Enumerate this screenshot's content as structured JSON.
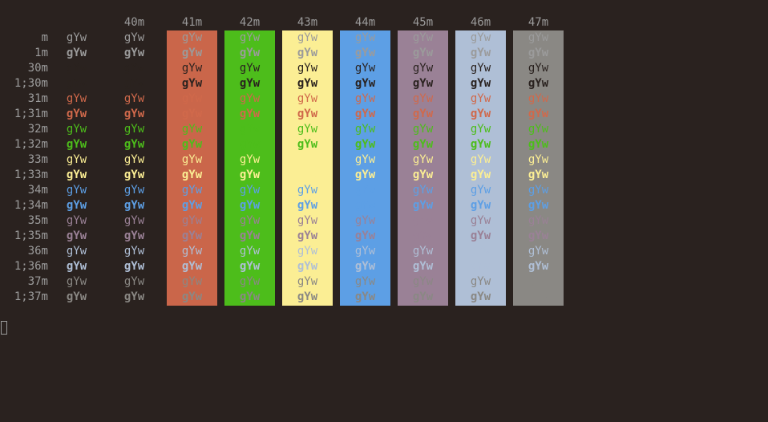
{
  "palette": {
    "fg_default": "#9b9b9b",
    "fg_30": "#2a221f",
    "fg_31": "#d0694b",
    "fg_32": "#4dbd1b",
    "fg_33": "#fbee94",
    "fg_34": "#5d9fe5",
    "fg_35": "#9a8196",
    "fg_36": "#afbfd6",
    "fg_37": "#8a8884",
    "bg_41": "#ca664a",
    "bg_42": "#4dbd1b",
    "bg_43": "#fbee94",
    "bg_44": "#5d9fe5",
    "bg_45": "#9a8196",
    "bg_46": "#afbfd6",
    "bg_47": "#8a8884"
  },
  "terminal": {
    "sample_text": "gYw",
    "column_headers": [
      "40m",
      "41m",
      "42m",
      "43m",
      "44m",
      "45m",
      "46m",
      "47m"
    ],
    "row_labels": [
      "m",
      "1m",
      "30m",
      "1;30m",
      "31m",
      "1;31m",
      "32m",
      "1;32m",
      "33m",
      "1;33m",
      "34m",
      "1;34m",
      "35m",
      "1;35m",
      "36m",
      "1;36m",
      "37m",
      "1;37m"
    ]
  }
}
